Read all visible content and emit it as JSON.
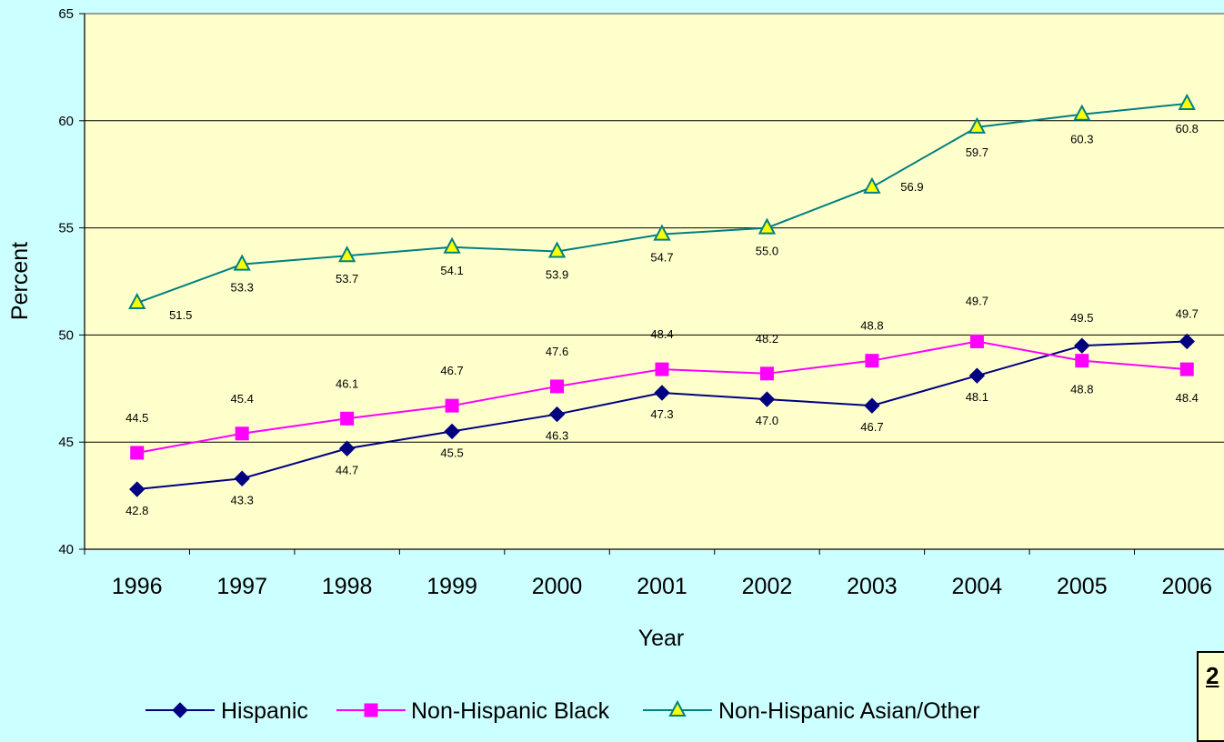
{
  "chart_data": {
    "type": "line",
    "xlabel": "Year",
    "ylabel": "Percent",
    "ylim": [
      40,
      65
    ],
    "yticks": [
      "40",
      "45",
      "50",
      "55",
      "60",
      "65"
    ],
    "categories": [
      "1996",
      "1997",
      "1998",
      "1999",
      "2000",
      "2001",
      "2002",
      "2003",
      "2004",
      "2005",
      "2006"
    ],
    "grid": "horizontal",
    "legend_position": "bottom",
    "series": [
      {
        "name": "Hispanic",
        "color": "#000080",
        "marker": "diamond",
        "values": [
          42.8,
          43.3,
          44.7,
          45.5,
          46.3,
          47.3,
          47.0,
          46.7,
          48.1,
          49.5,
          49.7
        ],
        "labels": [
          "42.8",
          "43.3",
          "44.7",
          "45.5",
          "46.3",
          "47.3",
          "47.0",
          "46.7",
          "48.1",
          "49.5",
          "49.7"
        ]
      },
      {
        "name": "Non-Hispanic Black",
        "color": "#ff00ff",
        "marker": "square",
        "values": [
          44.5,
          45.4,
          46.1,
          46.7,
          47.6,
          48.4,
          48.2,
          48.8,
          49.7,
          48.8,
          48.4
        ],
        "labels": [
          "44.5",
          "45.4",
          "46.1",
          "46.7",
          "47.6",
          "48.4",
          "48.2",
          "48.8",
          "49.7",
          "48.8",
          "48.4"
        ]
      },
      {
        "name": "Non-Hispanic Asian/Other",
        "color": "#008080",
        "marker": "triangle",
        "marker_fill": "#ffff00",
        "values": [
          51.5,
          53.3,
          53.7,
          54.1,
          53.9,
          54.7,
          55.0,
          56.9,
          59.7,
          60.3,
          60.8
        ],
        "labels": [
          "51.5",
          "53.3",
          "53.7",
          "54.1",
          "53.9",
          "54.7",
          "55.0",
          "56.9",
          "59.7",
          "60.3",
          "60.8"
        ]
      }
    ],
    "colors": {
      "background": "#ccffff",
      "plot_area": "#ffffcc"
    }
  },
  "note": {
    "text": "2"
  }
}
